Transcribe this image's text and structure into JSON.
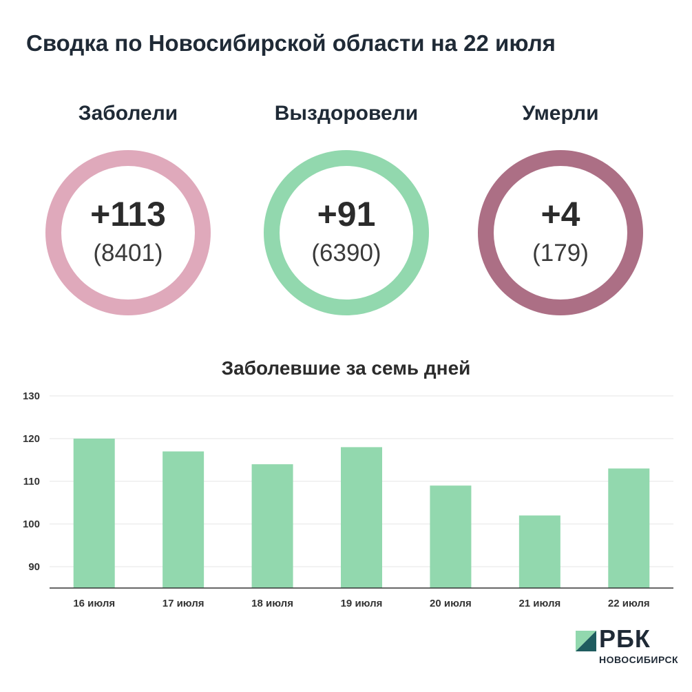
{
  "header": {
    "title": "Сводка по Новосибирской области на 22 июля"
  },
  "stats": [
    {
      "label": "Заболели",
      "delta": "+113",
      "total": "(8401)",
      "color": "#dfa9bb"
    },
    {
      "label": "Выздоровели",
      "delta": "+91",
      "total": "(6390)",
      "color": "#92d8ae"
    },
    {
      "label": "Умерли",
      "delta": "+4",
      "total": "(179)",
      "color": "#ac6f85"
    }
  ],
  "chart_data": {
    "type": "bar",
    "title": "Заболевшие за семь дней",
    "categories": [
      "16 июля",
      "17 июля",
      "18 июля",
      "19 июля",
      "20 июля",
      "21 июля",
      "22 июля"
    ],
    "values": [
      120,
      117,
      114,
      118,
      109,
      102,
      113
    ],
    "ylim": [
      85,
      130
    ],
    "yticks": [
      90,
      100,
      110,
      120,
      130
    ],
    "grid": true,
    "bar_color": "#92d8ae",
    "xlabel": "",
    "ylabel": ""
  },
  "brand": {
    "name": "РБК",
    "sub": "НОВОСИБИРСК"
  }
}
